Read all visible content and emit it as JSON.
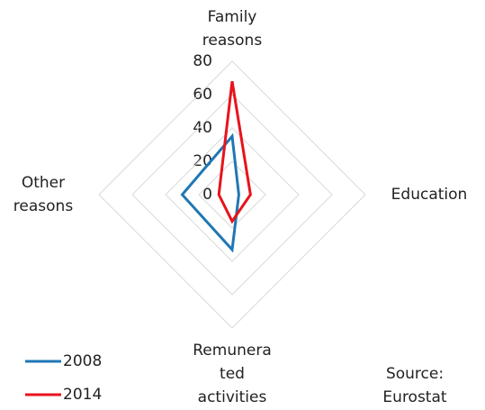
{
  "chart_data": {
    "type": "radar",
    "categories": [
      "Family\nreasons",
      "Education",
      "Remunera\nted\nactivities",
      "Other\nreasons"
    ],
    "series": [
      {
        "name": "2008",
        "color": "#1f77b4",
        "values": [
          35,
          4,
          33,
          30
        ]
      },
      {
        "name": "2014",
        "color": "#e8131b",
        "values": [
          68,
          11,
          16,
          8
        ]
      }
    ],
    "ylim": [
      0,
      80
    ],
    "yticks": [
      0,
      20,
      40,
      60,
      80
    ],
    "grid": true,
    "legend": "bottom-left",
    "source": "Source: Eurostat"
  }
}
